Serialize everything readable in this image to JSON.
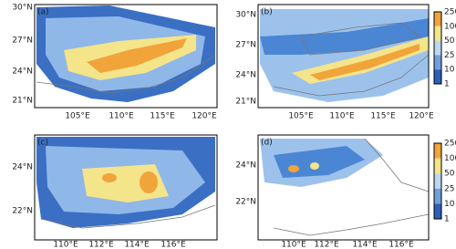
{
  "panels": [
    {
      "label": "(a)",
      "lat_labels": [
        "30°N",
        "27°N",
        "24°N",
        "21°N"
      ],
      "lon_labels": [
        "105°E",
        "110°E",
        "115°E",
        "120°E"
      ]
    },
    {
      "label": "(b)",
      "lat_labels": [
        "30°N",
        "27°N",
        "24°N",
        "21°N"
      ],
      "lon_labels": [
        "105°E",
        "110°E",
        "115°E",
        "120°E"
      ],
      "colorbar": [
        250,
        100,
        50,
        25,
        10,
        1
      ]
    },
    {
      "label": "(c)",
      "lat_labels": [
        "24°N",
        "22°N"
      ],
      "lon_labels": [
        "110°E",
        "112°E",
        "114°E",
        "116°E"
      ]
    },
    {
      "label": "(d)",
      "lat_labels": [
        "24°N",
        "22°N"
      ],
      "lon_labels": [
        "110°E",
        "112°E",
        "114°E",
        "116°E"
      ],
      "colorbar": [
        250,
        100,
        50,
        25,
        10,
        1
      ]
    }
  ]
}
